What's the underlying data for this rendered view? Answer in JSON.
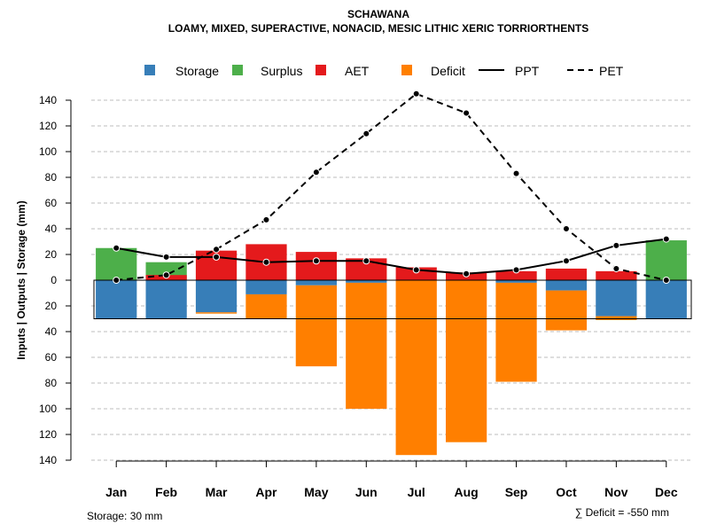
{
  "chart_data": {
    "type": "bar",
    "title": "SCHAWANA",
    "subtitle": "LOAMY, MIXED, SUPERACTIVE, NONACID, MESIC LITHIC XERIC TORRIORTHENTS",
    "ylabel": "Inputs | Outputs | Storage    (mm)",
    "categories": [
      "Jan",
      "Feb",
      "Mar",
      "Apr",
      "May",
      "Jun",
      "Jul",
      "Aug",
      "Sep",
      "Oct",
      "Nov",
      "Dec"
    ],
    "ylim": [
      -140,
      150
    ],
    "y_ticks": [
      140,
      120,
      100,
      80,
      60,
      40,
      20,
      0,
      -20,
      -40,
      -60,
      -80,
      -100,
      -120,
      -140
    ],
    "y_tick_labels": [
      "140",
      "120",
      "100",
      "80",
      "60",
      "40",
      "20",
      "0",
      "20",
      "40",
      "60",
      "80",
      "100",
      "120",
      "140"
    ],
    "storage_capacity": 30,
    "legend": {
      "storage": "Storage",
      "surplus": "Surplus",
      "aet": "AET",
      "deficit": "Deficit",
      "ppt": "PPT",
      "pet": "PET"
    },
    "colors": {
      "storage": "#377EB8",
      "surplus": "#4DAF4A",
      "aet": "#E41A1C",
      "deficit": "#FF7F00",
      "line": "#000000",
      "grid": "#BEBEBE"
    },
    "series": [
      {
        "name": "Storage",
        "values": [
          30,
          30,
          25,
          11,
          4,
          2,
          0,
          0,
          2,
          8,
          28,
          30
        ]
      },
      {
        "name": "Surplus",
        "values": [
          25,
          14,
          0,
          0,
          0,
          0,
          0,
          0,
          0,
          0,
          0,
          31
        ]
      },
      {
        "name": "AET",
        "values": [
          0,
          4,
          23,
          28,
          22,
          17,
          10,
          6,
          7,
          9,
          7,
          0
        ]
      },
      {
        "name": "Deficit",
        "values": [
          0,
          0,
          1,
          19,
          63,
          98,
          136,
          126,
          77,
          31,
          3,
          0
        ]
      },
      {
        "name": "PPT",
        "values": [
          25,
          18,
          18,
          14,
          15,
          15,
          8,
          5,
          8,
          15,
          27,
          32
        ]
      },
      {
        "name": "PET",
        "values": [
          0,
          4,
          24,
          47,
          84,
          114,
          145,
          130,
          83,
          40,
          9,
          0
        ]
      }
    ],
    "footnote_storage": "Storage: 30 mm",
    "footnote_deficit": "∑ Deficit = -550 mm"
  }
}
